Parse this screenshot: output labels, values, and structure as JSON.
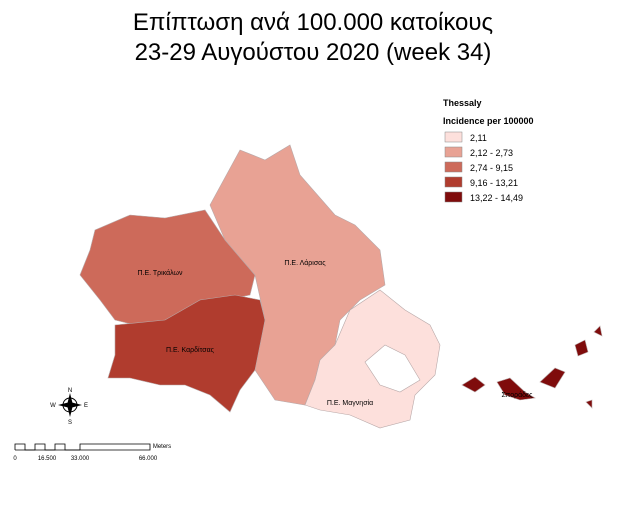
{
  "title": {
    "line1": "Επίπτωση ανά 100.000 κατοίκους",
    "line2": "23-29 Αυγούστου 2020 (week 34)"
  },
  "legend": {
    "region": "Thessaly",
    "title": "Incidence per 100000",
    "items": [
      {
        "label": "2,11",
        "color": "#fde0dc"
      },
      {
        "label": "2,12 - 2,73",
        "color": "#e8a294"
      },
      {
        "label": "2,74 - 9,15",
        "color": "#cd6a5a"
      },
      {
        "label": "9,16 - 13,21",
        "color": "#b03c2e"
      },
      {
        "label": "13,22 - 14,49",
        "color": "#7f0c0c"
      }
    ]
  },
  "regions": [
    {
      "label": "Π.Ε. Τρικάλων",
      "color": "#cd6a5a"
    },
    {
      "label": "Π.Ε. Καρδίτσας",
      "color": "#b03c2e"
    },
    {
      "label": "Π.Ε. Λάρισας",
      "color": "#e8a294"
    },
    {
      "label": "Π.Ε. Μαγνησία",
      "color": "#fde0dc"
    },
    {
      "label": "Σποράδες",
      "color": "#7f0c0c"
    }
  ],
  "compass": {
    "n": "N",
    "s": "S",
    "e": "E",
    "w": "W"
  },
  "scale": {
    "unit": "Meters",
    "labels": [
      "0",
      "16.500",
      "33.000",
      "66.000"
    ]
  }
}
